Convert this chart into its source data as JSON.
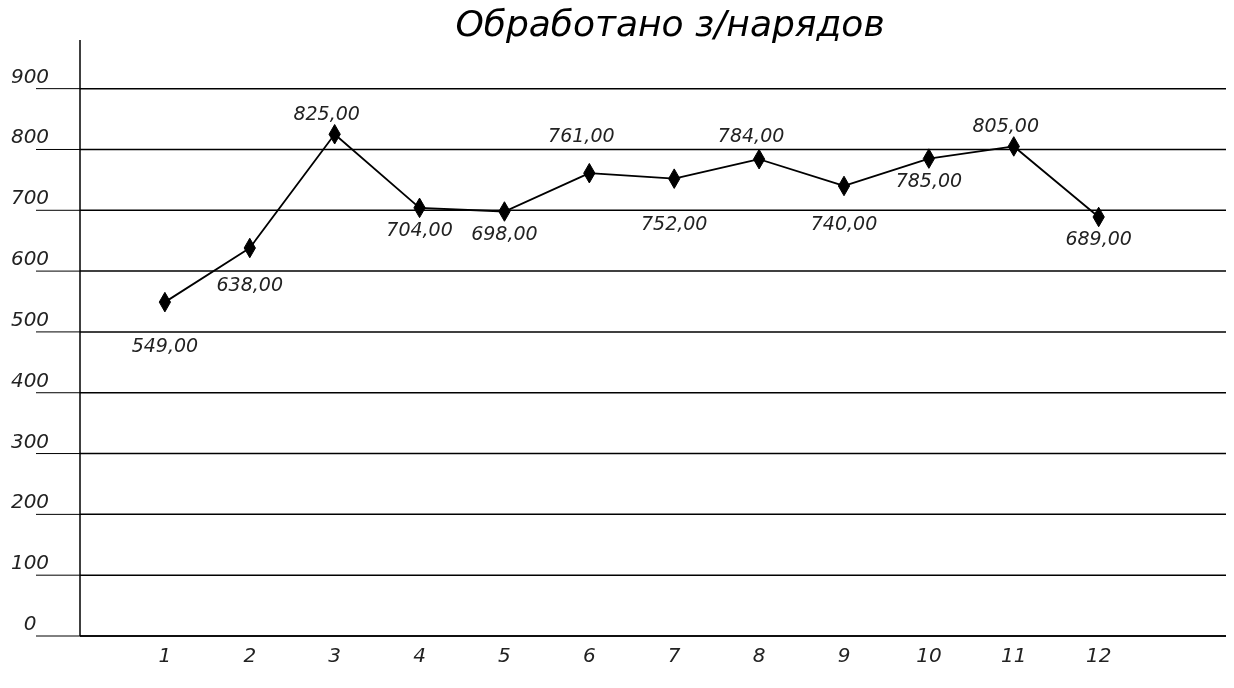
{
  "chart_data": {
    "type": "line",
    "title": "Обработано з/нарядов",
    "x": [
      1,
      2,
      3,
      4,
      5,
      6,
      7,
      8,
      9,
      10,
      11,
      12
    ],
    "xlim": [
      0,
      13.5
    ],
    "xticks": [
      1,
      2,
      3,
      4,
      5,
      6,
      7,
      8,
      9,
      10,
      11,
      12
    ],
    "values": [
      549,
      638,
      825,
      704,
      698,
      761,
      752,
      784,
      740,
      785,
      805,
      689
    ],
    "value_labels": [
      "549,00",
      "638,00",
      "825,00",
      "704,00",
      "698,00",
      "761,00",
      "752,00",
      "784,00",
      "740,00",
      "785,00",
      "805,00",
      "689,00"
    ],
    "color": "#000000",
    "marker": "diamond",
    "line_style": "solid",
    "grid": "y",
    "ylim": [
      0,
      980
    ],
    "yticks": [
      0,
      100,
      200,
      300,
      400,
      500,
      600,
      700,
      800,
      900
    ]
  }
}
